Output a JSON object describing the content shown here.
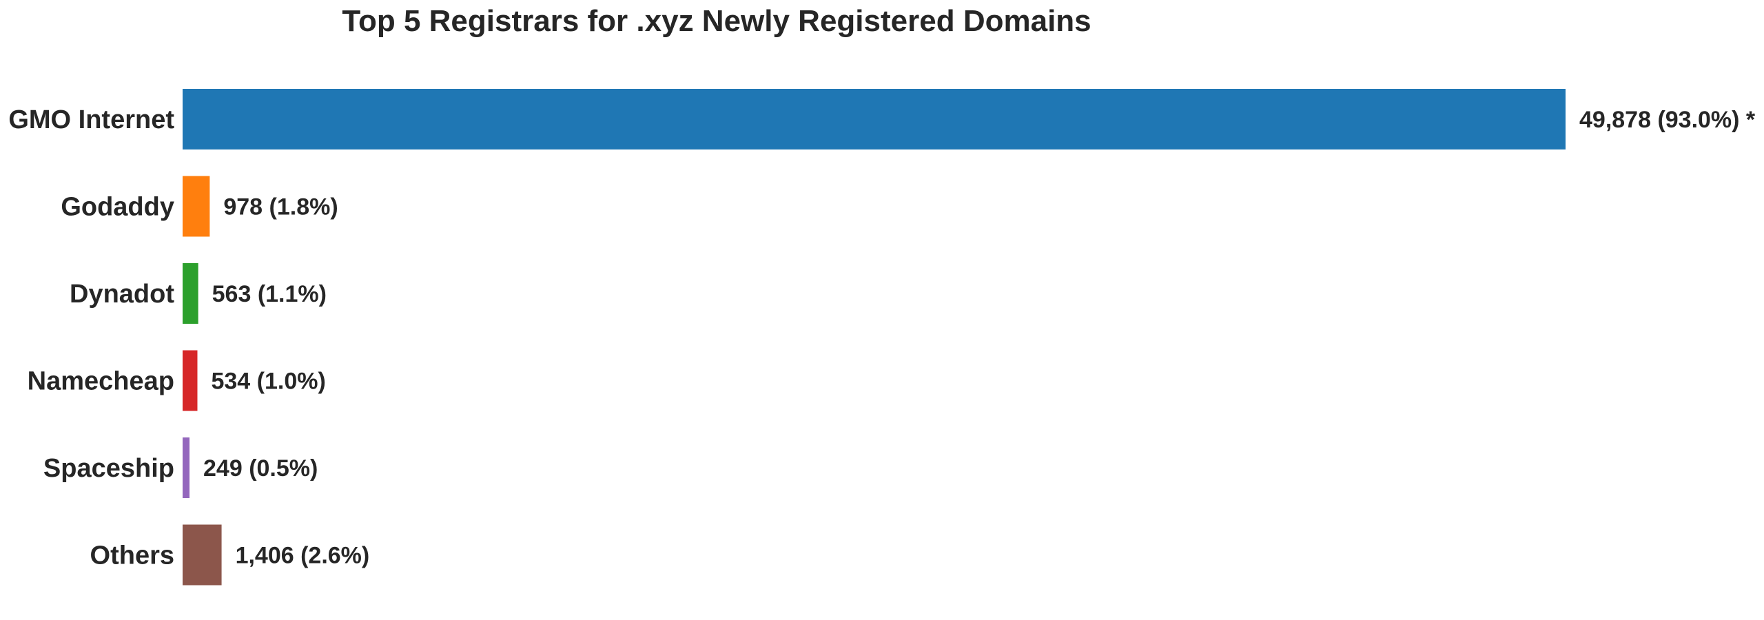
{
  "chart_data": {
    "type": "bar",
    "orientation": "horizontal",
    "title": "Top 5 Registrars for .xyz Newly Registered Domains",
    "xlabel": "",
    "ylabel": "",
    "categories": [
      "GMO Internet",
      "Godaddy",
      "Dynadot",
      "Namecheap",
      "Spaceship",
      "Others"
    ],
    "values": [
      49878,
      978,
      563,
      534,
      249,
      1406
    ],
    "value_labels": [
      "49,878 (93.0%) *",
      "978 (1.8%)",
      "563 (1.1%)",
      "534 (1.0%)",
      "249 (0.5%)",
      "1,406 (2.6%)"
    ],
    "colors": [
      "#1f77b4",
      "#ff7f0e",
      "#2ca02c",
      "#d62728",
      "#9467bd",
      "#8c564b"
    ],
    "grid": false,
    "legend": "none"
  }
}
